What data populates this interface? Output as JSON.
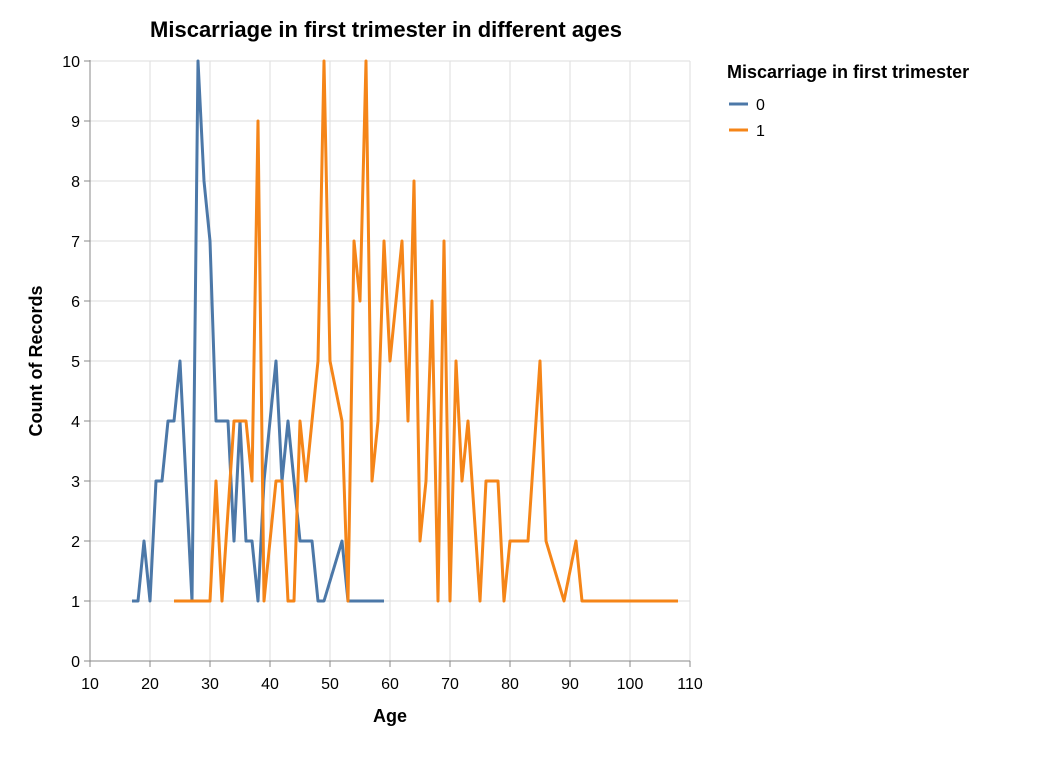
{
  "chart_data": {
    "type": "line",
    "title": "Miscarriage in first trimester in different ages",
    "xlabel": "Age",
    "ylabel": "Count of Records",
    "xlim": [
      10,
      110
    ],
    "ylim": [
      0,
      10
    ],
    "xticks": [
      10,
      20,
      30,
      40,
      50,
      60,
      70,
      80,
      90,
      100,
      110
    ],
    "yticks": [
      0,
      1,
      2,
      3,
      4,
      5,
      6,
      7,
      8,
      9,
      10
    ],
    "grid": true,
    "legend": {
      "title": "Miscarriage in first trimester",
      "position": "right"
    },
    "series": [
      {
        "name": "0",
        "color": "#4c78a8",
        "points": [
          [
            17,
            1
          ],
          [
            18,
            1
          ],
          [
            19,
            2
          ],
          [
            20,
            1
          ],
          [
            21,
            3
          ],
          [
            22,
            3
          ],
          [
            23,
            4
          ],
          [
            24,
            4
          ],
          [
            25,
            5
          ],
          [
            27,
            1
          ],
          [
            28,
            10
          ],
          [
            29,
            8
          ],
          [
            30,
            7
          ],
          [
            31,
            4
          ],
          [
            32,
            4
          ],
          [
            33,
            4
          ],
          [
            34,
            2
          ],
          [
            35,
            4
          ],
          [
            36,
            2
          ],
          [
            37,
            2
          ],
          [
            38,
            1
          ],
          [
            39,
            3
          ],
          [
            40,
            4
          ],
          [
            41,
            5
          ],
          [
            42,
            3
          ],
          [
            43,
            4
          ],
          [
            44,
            3
          ],
          [
            45,
            2
          ],
          [
            46,
            2
          ],
          [
            47,
            2
          ],
          [
            48,
            1
          ],
          [
            49,
            1
          ],
          [
            52,
            2
          ],
          [
            53,
            1
          ],
          [
            59,
            1
          ]
        ]
      },
      {
        "name": "1",
        "color": "#f58518",
        "points": [
          [
            24,
            1
          ],
          [
            30,
            1
          ],
          [
            31,
            3
          ],
          [
            32,
            1
          ],
          [
            34,
            4
          ],
          [
            35,
            4
          ],
          [
            36,
            4
          ],
          [
            37,
            3
          ],
          [
            38,
            9
          ],
          [
            39,
            1
          ],
          [
            41,
            3
          ],
          [
            42,
            3
          ],
          [
            43,
            1
          ],
          [
            44,
            1
          ],
          [
            45,
            4
          ],
          [
            46,
            3
          ],
          [
            48,
            5
          ],
          [
            49,
            10
          ],
          [
            50,
            5
          ],
          [
            52,
            4
          ],
          [
            53,
            1
          ],
          [
            54,
            7
          ],
          [
            55,
            6
          ],
          [
            56,
            10
          ],
          [
            57,
            3
          ],
          [
            58,
            4
          ],
          [
            59,
            7
          ],
          [
            60,
            5
          ],
          [
            62,
            7
          ],
          [
            63,
            4
          ],
          [
            64,
            8
          ],
          [
            65,
            2
          ],
          [
            66,
            3
          ],
          [
            67,
            6
          ],
          [
            68,
            1
          ],
          [
            69,
            7
          ],
          [
            70,
            1
          ],
          [
            71,
            5
          ],
          [
            72,
            3
          ],
          [
            73,
            4
          ],
          [
            75,
            1
          ],
          [
            76,
            3
          ],
          [
            78,
            3
          ],
          [
            79,
            1
          ],
          [
            80,
            2
          ],
          [
            83,
            2
          ],
          [
            85,
            5
          ],
          [
            86,
            2
          ],
          [
            89,
            1
          ],
          [
            91,
            2
          ],
          [
            92,
            1
          ],
          [
            108,
            1
          ]
        ]
      }
    ]
  }
}
